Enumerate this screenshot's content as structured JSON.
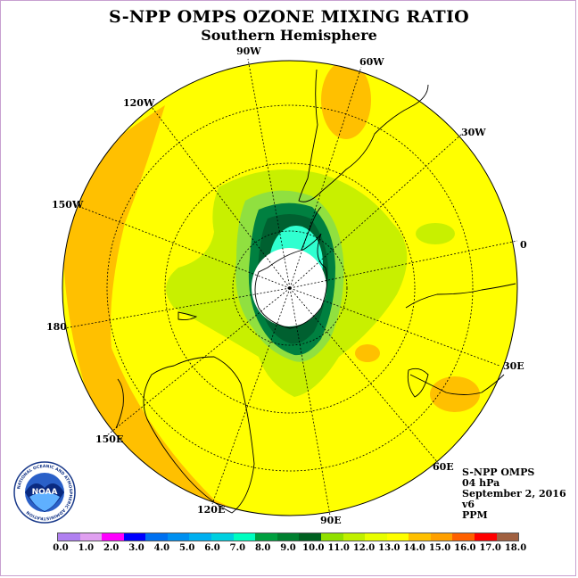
{
  "header": {
    "title": "S-NPP OMPS OZONE MIXING RATIO",
    "subtitle": "Southern Hemisphere"
  },
  "map": {
    "projection": "south-polar-stereographic",
    "longitude_labels": [
      {
        "id": "90w",
        "text": "90W"
      },
      {
        "id": "60w",
        "text": "60W"
      },
      {
        "id": "30w",
        "text": "30W"
      },
      {
        "id": "0",
        "text": "0"
      },
      {
        "id": "30e",
        "text": "30E"
      },
      {
        "id": "60e",
        "text": "60E"
      },
      {
        "id": "90e",
        "text": "90E"
      },
      {
        "id": "120e",
        "text": "120E"
      },
      {
        "id": "150e",
        "text": "150E"
      },
      {
        "id": "180",
        "text": "180"
      },
      {
        "id": "150w",
        "text": "150W"
      },
      {
        "id": "120w",
        "text": "120W"
      }
    ],
    "colors": {
      "background_field": "#ffff00",
      "orange_band": "#ffc000",
      "light_green": "#c8f000",
      "green": "#90e040",
      "dark_green": "#008040",
      "darkest_green": "#006030",
      "cyan": "#30ffd0",
      "no_data": "#ffffff"
    }
  },
  "info": {
    "product": "S-NPP OMPS",
    "level": "04 hPa",
    "date": "September 2, 2016",
    "version": "v6",
    "units": "PPM"
  },
  "colorbar": {
    "colors": [
      "#b080f0",
      "#e0a0f0",
      "#ff00ff",
      "#0000ff",
      "#0070f0",
      "#0090f0",
      "#00b0f0",
      "#00d0e0",
      "#00ffc0",
      "#00a040",
      "#008030",
      "#006020",
      "#90e000",
      "#c0f000",
      "#e8ff00",
      "#ffff00",
      "#ffc000",
      "#ffa000",
      "#ff6000",
      "#ff0000",
      "#a06040"
    ],
    "tick_labels": [
      "0.0",
      "1.0",
      "2.0",
      "3.0",
      "4.0",
      "5.0",
      "6.0",
      "7.0",
      "8.0",
      "9.0",
      "10.0",
      "11.0",
      "12.0",
      "13.0",
      "14.0",
      "15.0",
      "16.0",
      "17.0",
      "18.0"
    ]
  },
  "logo": {
    "text": "NOAA",
    "ring_text": "NATIONAL OCEANIC AND ATMOSPHERIC ADMINISTRATION"
  }
}
